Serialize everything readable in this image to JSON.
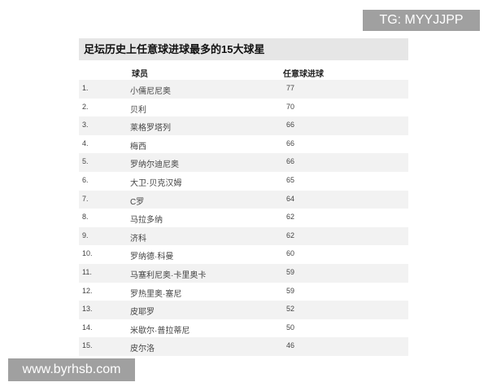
{
  "title": "足坛历史上任意球进球最多的15大球星",
  "headers": {
    "player": "球员",
    "goals": "任意球进球"
  },
  "rows": [
    {
      "rank": "1.",
      "name": "小儒尼尼奥",
      "goals": "77"
    },
    {
      "rank": "2.",
      "name": "贝利",
      "goals": "70"
    },
    {
      "rank": "3.",
      "name": "莱格罗塔列",
      "goals": "66"
    },
    {
      "rank": "4.",
      "name": "梅西",
      "goals": "66"
    },
    {
      "rank": "5.",
      "name": "罗纳尔迪尼奥",
      "goals": "66"
    },
    {
      "rank": "6.",
      "name": "大卫·贝克汉姆",
      "goals": "65"
    },
    {
      "rank": "7.",
      "name": "C罗",
      "goals": "64"
    },
    {
      "rank": "8.",
      "name": "马拉多纳",
      "goals": "62"
    },
    {
      "rank": "9.",
      "name": "济科",
      "goals": "62"
    },
    {
      "rank": "10.",
      "name": "罗纳德·科曼",
      "goals": "60"
    },
    {
      "rank": "11.",
      "name": "马塞利尼奥·卡里奥卡",
      "goals": "59"
    },
    {
      "rank": "12.",
      "name": "罗热里奥·塞尼",
      "goals": "59"
    },
    {
      "rank": "13.",
      "name": "皮耶罗",
      "goals": "52"
    },
    {
      "rank": "14.",
      "name": "米歇尔·普拉蒂尼",
      "goals": "50"
    },
    {
      "rank": "15.",
      "name": "皮尔洛",
      "goals": "46"
    }
  ],
  "watermarks": {
    "top": "TG: MYYJJPP",
    "bottom": "www.byrhsb.com"
  }
}
